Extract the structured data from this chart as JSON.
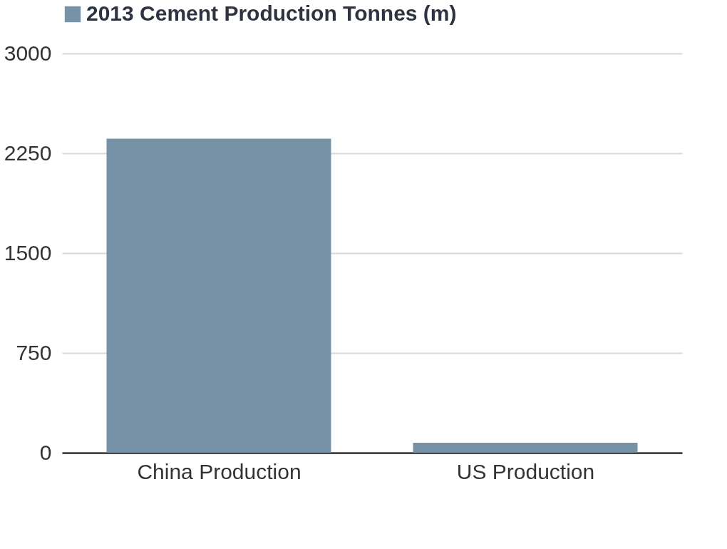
{
  "chart_data": {
    "type": "bar",
    "categories": [
      "China Production",
      "US Production"
    ],
    "series": [
      {
        "name": "2013 Cement Production Tonnes (m)",
        "color": "#7792a6",
        "values": [
          2360,
          75
        ]
      }
    ],
    "ylim": [
      0,
      3000
    ],
    "yticks": [
      0,
      750,
      1500,
      2250,
      3000
    ],
    "grid": "y",
    "legend": "top"
  }
}
